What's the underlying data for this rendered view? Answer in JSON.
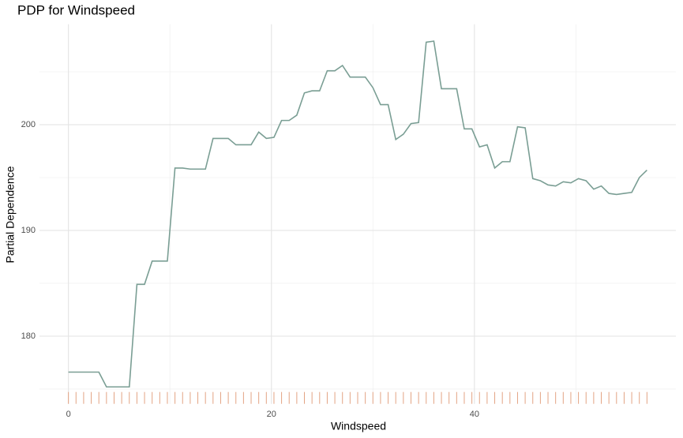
{
  "chart_data": {
    "type": "line",
    "title": "PDP for Windspeed",
    "xlabel": "Windspeed",
    "ylabel": "Partial Dependence",
    "x": [
      0,
      0.75,
      1.5,
      2.25,
      3,
      3.75,
      4.5,
      5.25,
      6,
      6.75,
      7.5,
      8.25,
      9,
      9.75,
      10.5,
      11.25,
      12,
      12.75,
      13.5,
      14.25,
      15,
      15.75,
      16.5,
      17.25,
      18,
      18.75,
      19.5,
      20.25,
      21,
      21.75,
      22.5,
      23.25,
      24,
      24.75,
      25.5,
      26.25,
      27,
      27.75,
      28.5,
      29.25,
      30,
      30.75,
      31.5,
      32.25,
      33,
      33.75,
      34.5,
      35.25,
      36,
      36.75,
      37.5,
      38.25,
      39,
      39.75,
      40.5,
      41.25,
      42,
      42.75,
      43.5,
      44.25,
      45,
      45.75,
      46.5,
      47.25,
      48,
      48.75,
      49.5,
      50.25,
      51,
      51.75,
      52.5,
      53.25,
      54,
      54.75,
      55.5,
      56.25,
      57
    ],
    "series": [
      {
        "color": "#7a9e94",
        "values": [
          176.6,
          176.6,
          176.6,
          176.6,
          176.6,
          175.2,
          175.2,
          175.2,
          175.2,
          184.9,
          184.9,
          187.1,
          187.1,
          187.1,
          195.9,
          195.9,
          195.8,
          195.8,
          195.8,
          198.7,
          198.7,
          198.7,
          198.1,
          198.1,
          198.1,
          199.3,
          198.7,
          198.8,
          200.4,
          200.4,
          200.9,
          203.0,
          203.2,
          203.2,
          205.1,
          205.1,
          205.6,
          204.5,
          204.5,
          204.5,
          203.5,
          201.9,
          201.9,
          198.6,
          199.1,
          200.1,
          200.2,
          207.8,
          207.9,
          203.4,
          203.4,
          203.4,
          199.6,
          199.6,
          197.9,
          198.1,
          195.9,
          196.5,
          196.5,
          199.8,
          199.7,
          194.9,
          194.7,
          194.3,
          194.2,
          194.6,
          194.5,
          194.9,
          194.7,
          193.9,
          194.2,
          193.5,
          193.4,
          193.5,
          193.6,
          195.0,
          195.7
        ]
      }
    ],
    "rug_color": "#e3a383",
    "xlim": [
      -2.85,
      59.85
    ],
    "xticks": [
      0,
      20,
      40
    ],
    "xminor": [
      10,
      30,
      50
    ],
    "ylim": [
      173.6,
      209.5
    ],
    "yticks": [
      180,
      190,
      200
    ],
    "yminor": [
      175,
      185,
      195,
      205
    ],
    "grid": true
  }
}
